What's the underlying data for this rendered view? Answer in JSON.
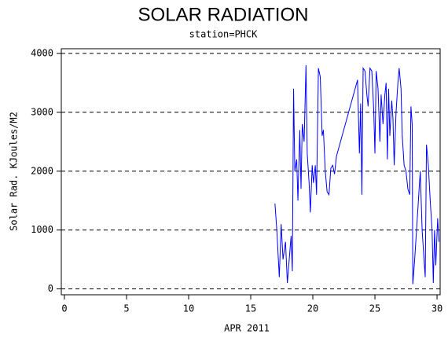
{
  "chart_data": {
    "type": "line",
    "title": "SOLAR RADIATION",
    "subtitle": "station=PHCK",
    "x_label": "APR 2011",
    "y_label": "Solar Rad. KJoules/M2",
    "color": "#0000ff",
    "grid": true,
    "xlim": [
      -0.25,
      30.25
    ],
    "ylim": [
      -100,
      4080
    ],
    "xticks": [
      0,
      5,
      10,
      15,
      20,
      25,
      30
    ],
    "yticks": [
      0,
      1000,
      2000,
      3000,
      4000
    ],
    "x": [
      16.95,
      17.1,
      17.3,
      17.45,
      17.6,
      17.8,
      17.95,
      18.1,
      18.25,
      18.35,
      18.45,
      18.55,
      18.7,
      18.8,
      18.95,
      19.05,
      19.15,
      19.3,
      19.45,
      19.55,
      19.7,
      19.8,
      19.95,
      20.05,
      20.2,
      20.3,
      20.45,
      20.6,
      20.75,
      20.85,
      21.0,
      21.15,
      21.3,
      21.45,
      21.6,
      21.75,
      21.9,
      23.6,
      23.75,
      23.85,
      23.95,
      24.05,
      24.2,
      24.35,
      24.45,
      24.6,
      24.75,
      24.9,
      25.0,
      25.1,
      25.25,
      25.4,
      25.5,
      25.65,
      25.8,
      25.9,
      26.0,
      26.1,
      26.2,
      26.35,
      26.45,
      26.55,
      26.7,
      26.85,
      26.95,
      27.1,
      27.2,
      27.35,
      27.5,
      27.65,
      27.8,
      27.9,
      28.0,
      28.05,
      28.2,
      28.35,
      28.5,
      28.65,
      28.8,
      28.95,
      29.05,
      29.15,
      29.3,
      29.45,
      29.6,
      29.7,
      29.8,
      29.9,
      30.05,
      30.15
    ],
    "values": [
      1450,
      1000,
      200,
      1100,
      500,
      800,
      100,
      500,
      900,
      300,
      3400,
      2000,
      2200,
      1500,
      2700,
      1700,
      2800,
      2500,
      3800,
      2300,
      1800,
      1300,
      2100,
      1800,
      2100,
      1600,
      3750,
      3600,
      2600,
      2700,
      2000,
      1650,
      1600,
      2050,
      2100,
      1950,
      2250,
      3550,
      2300,
      3150,
      1600,
      3750,
      3700,
      3300,
      3100,
      3750,
      3700,
      3050,
      2300,
      3700,
      3400,
      2500,
      3300,
      2800,
      3300,
      3500,
      2200,
      3400,
      2600,
      3200,
      2900,
      2100,
      3000,
      3500,
      3750,
      3400,
      2600,
      2100,
      2000,
      1700,
      1600,
      3100,
      2800,
      80,
      500,
      1000,
      1500,
      2000,
      1000,
      500,
      200,
      2450,
      2100,
      1500,
      1000,
      100,
      1000,
      400,
      1200,
      800
    ]
  }
}
